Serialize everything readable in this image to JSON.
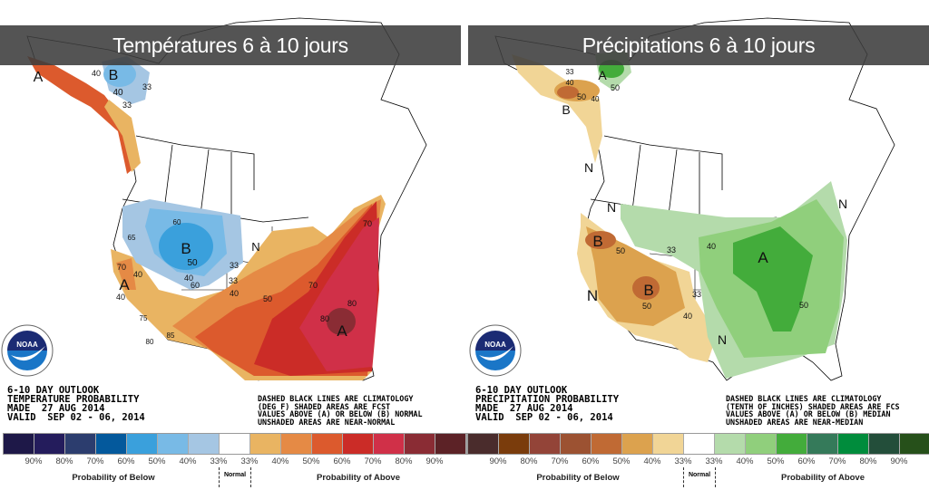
{
  "left": {
    "title": "Températures 6 à 10 jours",
    "info": [
      "6-10 DAY OUTLOOK",
      "TEMPERATURE PROBABILITY",
      "MADE  27 AUG 2014",
      "VALID  SEP 02 - 06, 2014"
    ],
    "note": [
      "DASHED BLACK LINES ARE CLIMATOLOGY",
      "(DEG F) SHADED AREAS ARE FCST",
      "VALUES ABOVE (A) OR BELOW (B) NORMAL",
      "UNSHADED AREAS ARE NEAR-NORMAL"
    ],
    "map_labels": [
      "A",
      "B",
      "40",
      "33",
      "40",
      "33",
      "B",
      "60",
      "65",
      "50",
      "33",
      "40",
      "N",
      "A",
      "70",
      "40",
      "40",
      "33",
      "40",
      "50",
      "60",
      "70",
      "80",
      "80",
      "A",
      "70",
      "75",
      "85",
      "80"
    ],
    "legend": {
      "colors": [
        "#1e1848",
        "#241c5c",
        "#2c3d6e",
        "#04599c",
        "#3aa0dc",
        "#78bae6",
        "#a5c6e3",
        "#ffffff",
        "#e9b462",
        "#e58a45",
        "#dc5a2d",
        "#cb2c27",
        "#d03048",
        "#8a2c34",
        "#5c2226"
      ],
      "labels": [
        "90%",
        "80%",
        "70%",
        "60%",
        "50%",
        "40%",
        "33%",
        "33%",
        "40%",
        "50%",
        "60%",
        "70%",
        "80%",
        "90%"
      ],
      "below": "Probability of Below",
      "normal": "Normal",
      "above": "Probability of Above"
    }
  },
  "right": {
    "title": "Précipitations 6 à 10 jours",
    "info": [
      "6-10 DAY OUTLOOK",
      "PRECIPITATION PROBABILITY",
      "MADE  27 AUG 2014",
      "VALID  SEP 02 - 06, 2014"
    ],
    "note": [
      "DASHED BLACK LINES ARE CLIMATOLOGY",
      "(TENTH OF INCHES) SHADED AREAS ARE FCS",
      "VALUES ABOVE (A) OR BELOW (B) MEDIAN",
      "UNSHADED AREAS ARE NEAR-MEDIAN"
    ],
    "map_labels": [
      "A",
      "50",
      "33",
      "40",
      "50",
      "40",
      "B",
      "N",
      "N",
      "B",
      "50",
      "33",
      "40",
      "A",
      "N",
      "B",
      "50",
      "33",
      "40",
      "N",
      "50",
      "N"
    ],
    "legend": {
      "colors": [
        "#4a2c2c",
        "#7a3c0c",
        "#934438",
        "#9c5232",
        "#c06a34",
        "#dca24e",
        "#f1d596",
        "#ffffff",
        "#b4dbab",
        "#90cf7c",
        "#43ac3b",
        "#357a5a",
        "#008c3c",
        "#234e3a",
        "#26501a"
      ],
      "labels": [
        "90%",
        "80%",
        "70%",
        "60%",
        "50%",
        "40%",
        "33%",
        "33%",
        "40%",
        "50%",
        "60%",
        "70%",
        "80%",
        "90%"
      ],
      "below": "Probability of Below",
      "normal": "Normal",
      "above": "Probability of Above"
    }
  },
  "logo": "NOAA"
}
